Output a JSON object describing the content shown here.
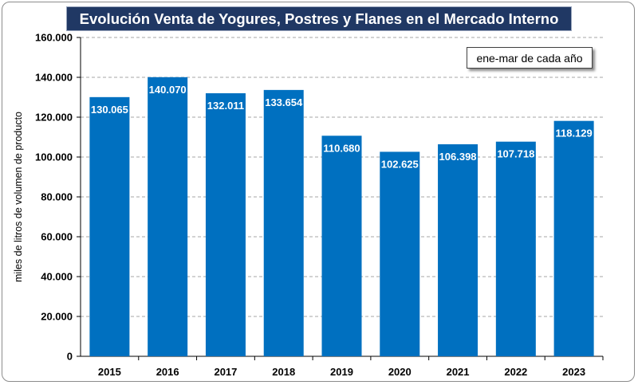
{
  "colors": {
    "bar": "#0070c0",
    "title_bg": "#203864",
    "title_text": "#ffffff",
    "grid": "#a6a6a6"
  },
  "chart_data": {
    "type": "bar",
    "title": "Evolución Venta de Yogures, Postres y Flanes en el Mercado Interno",
    "note": "ene-mar de cada año",
    "xlabel": "",
    "ylabel": "miles de litros de volumen de producto",
    "categories": [
      "2015",
      "2016",
      "2017",
      "2018",
      "2019",
      "2020",
      "2021",
      "2022",
      "2023"
    ],
    "values": [
      130065,
      140070,
      132011,
      133654,
      110680,
      102625,
      106398,
      107718,
      118129
    ],
    "value_labels": [
      "130.065",
      "140.070",
      "132.011",
      "133.654",
      "110.680",
      "102.625",
      "106.398",
      "107.718",
      "118.129"
    ],
    "ylim": [
      0,
      160000
    ],
    "yticks": [
      0,
      20000,
      40000,
      60000,
      80000,
      100000,
      120000,
      140000,
      160000
    ],
    "ytick_labels": [
      "0",
      "20.000",
      "40.000",
      "60.000",
      "80.000",
      "100.000",
      "120.000",
      "140.000",
      "160.000"
    ],
    "grid": true,
    "legend": false
  }
}
